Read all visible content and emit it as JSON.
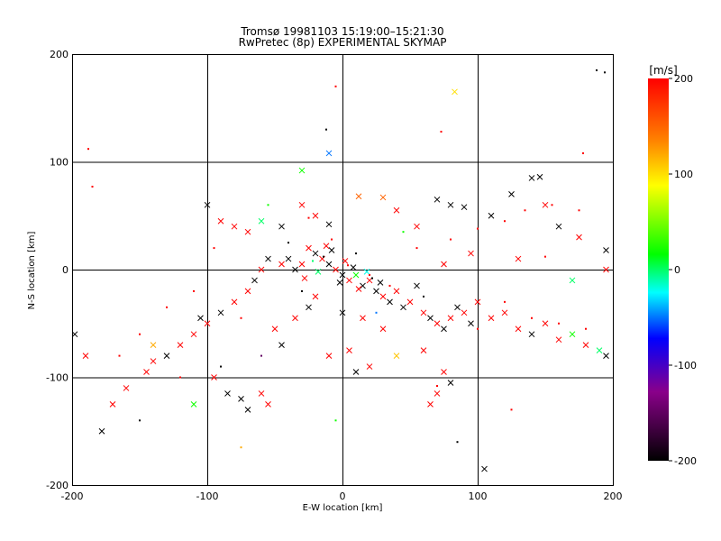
{
  "chart_data": {
    "type": "scatter",
    "title": "Tromsø 19981103 15:19:00–15:21:30",
    "subtitle": "RwPretec (8p) EXPERIMENTAL SKYMAP",
    "xlabel": "E-W location [km]",
    "ylabel": "N-S location [km]",
    "xlim": [
      -200,
      200
    ],
    "ylim": [
      -200,
      200
    ],
    "x_ticks": [
      -200,
      -100,
      0,
      100,
      200
    ],
    "y_ticks": [
      -200,
      -100,
      0,
      100,
      200
    ],
    "x_tick_labels": [
      "-200",
      "-100",
      "0",
      "100",
      "200"
    ],
    "y_tick_labels": [
      "-200",
      "-100",
      "0",
      "100",
      "200"
    ],
    "grid": true,
    "marker_types": [
      "x",
      "dot"
    ],
    "colorbar": {
      "label": "[m/s]",
      "range": [
        -200,
        200
      ],
      "ticks": [
        200,
        100,
        0,
        -100,
        -200
      ],
      "tick_labels": [
        "200",
        "100",
        "0",
        "-100",
        "-200"
      ],
      "colormap": [
        "#000000",
        "#9a0090",
        "#0000ff",
        "#00ffff",
        "#00ff00",
        "#ffff00",
        "#ff8000",
        "#ff0000"
      ]
    },
    "points": [
      {
        "x": -15,
        "y": 10,
        "v": 200,
        "m": "x"
      },
      {
        "x": -10,
        "y": 5,
        "v": -200,
        "m": "x"
      },
      {
        "x": -5,
        "y": 0,
        "v": 200,
        "m": "x"
      },
      {
        "x": 0,
        "y": -5,
        "v": -200,
        "m": "x"
      },
      {
        "x": 5,
        "y": -10,
        "v": 200,
        "m": "x"
      },
      {
        "x": 10,
        "y": -5,
        "v": 20,
        "m": "x"
      },
      {
        "x": -20,
        "y": 15,
        "v": -200,
        "m": "x"
      },
      {
        "x": -25,
        "y": 20,
        "v": 200,
        "m": "x"
      },
      {
        "x": 15,
        "y": -15,
        "v": -200,
        "m": "x"
      },
      {
        "x": 20,
        "y": -10,
        "v": 200,
        "m": "x"
      },
      {
        "x": 25,
        "y": -20,
        "v": -200,
        "m": "x"
      },
      {
        "x": -30,
        "y": 5,
        "v": 200,
        "m": "x"
      },
      {
        "x": -35,
        "y": 0,
        "v": -200,
        "m": "x"
      },
      {
        "x": 30,
        "y": -25,
        "v": 200,
        "m": "x"
      },
      {
        "x": 35,
        "y": -30,
        "v": -200,
        "m": "x"
      },
      {
        "x": 40,
        "y": -20,
        "v": 200,
        "m": "x"
      },
      {
        "x": -40,
        "y": 10,
        "v": -200,
        "m": "x"
      },
      {
        "x": -45,
        "y": 5,
        "v": 200,
        "m": "x"
      },
      {
        "x": 45,
        "y": -35,
        "v": -200,
        "m": "x"
      },
      {
        "x": 50,
        "y": -30,
        "v": 200,
        "m": "x"
      },
      {
        "x": -12,
        "y": 22,
        "v": 200,
        "m": "x"
      },
      {
        "x": -8,
        "y": 18,
        "v": -200,
        "m": "x"
      },
      {
        "x": 2,
        "y": 8,
        "v": 200,
        "m": "x"
      },
      {
        "x": 8,
        "y": 2,
        "v": -200,
        "m": "x"
      },
      {
        "x": -2,
        "y": -12,
        "v": -200,
        "m": "x"
      },
      {
        "x": 12,
        "y": -18,
        "v": 200,
        "m": "x"
      },
      {
        "x": -18,
        "y": -2,
        "v": 0,
        "m": "x"
      },
      {
        "x": 18,
        "y": -2,
        "v": -20,
        "m": "x"
      },
      {
        "x": -28,
        "y": -8,
        "v": 200,
        "m": "x"
      },
      {
        "x": 28,
        "y": -12,
        "v": -200,
        "m": "x"
      },
      {
        "x": -55,
        "y": 10,
        "v": -200,
        "m": "x"
      },
      {
        "x": -60,
        "y": 0,
        "v": 200,
        "m": "x"
      },
      {
        "x": -65,
        "y": -10,
        "v": -200,
        "m": "x"
      },
      {
        "x": -70,
        "y": -20,
        "v": 200,
        "m": "x"
      },
      {
        "x": 55,
        "y": -15,
        "v": -200,
        "m": "x"
      },
      {
        "x": 60,
        "y": -40,
        "v": 200,
        "m": "x"
      },
      {
        "x": 65,
        "y": -45,
        "v": -200,
        "m": "x"
      },
      {
        "x": 70,
        "y": -50,
        "v": 200,
        "m": "x"
      },
      {
        "x": 75,
        "y": -55,
        "v": -200,
        "m": "x"
      },
      {
        "x": 80,
        "y": -45,
        "v": 200,
        "m": "x"
      },
      {
        "x": 85,
        "y": -35,
        "v": -200,
        "m": "x"
      },
      {
        "x": 90,
        "y": -40,
        "v": 200,
        "m": "x"
      },
      {
        "x": 95,
        "y": -50,
        "v": -200,
        "m": "x"
      },
      {
        "x": 100,
        "y": -30,
        "v": 200,
        "m": "x"
      },
      {
        "x": 110,
        "y": -45,
        "v": 200,
        "m": "x"
      },
      {
        "x": 120,
        "y": -40,
        "v": 200,
        "m": "x"
      },
      {
        "x": 130,
        "y": -55,
        "v": 200,
        "m": "x"
      },
      {
        "x": 140,
        "y": -60,
        "v": -200,
        "m": "x"
      },
      {
        "x": 150,
        "y": -50,
        "v": 200,
        "m": "x"
      },
      {
        "x": 160,
        "y": -65,
        "v": 200,
        "m": "x"
      },
      {
        "x": 170,
        "y": -60,
        "v": 20,
        "m": "x"
      },
      {
        "x": 180,
        "y": -70,
        "v": 200,
        "m": "x"
      },
      {
        "x": 190,
        "y": -75,
        "v": 0,
        "m": "x"
      },
      {
        "x": 195,
        "y": -80,
        "v": -200,
        "m": "x"
      },
      {
        "x": -80,
        "y": -30,
        "v": 200,
        "m": "x"
      },
      {
        "x": -90,
        "y": -40,
        "v": -200,
        "m": "x"
      },
      {
        "x": -100,
        "y": -50,
        "v": 200,
        "m": "x"
      },
      {
        "x": -105,
        "y": -45,
        "v": -200,
        "m": "x"
      },
      {
        "x": -110,
        "y": -60,
        "v": 200,
        "m": "x"
      },
      {
        "x": -120,
        "y": -70,
        "v": 200,
        "m": "x"
      },
      {
        "x": -130,
        "y": -80,
        "v": -200,
        "m": "x"
      },
      {
        "x": -140,
        "y": -85,
        "v": 200,
        "m": "x"
      },
      {
        "x": -145,
        "y": -95,
        "v": 200,
        "m": "x"
      },
      {
        "x": -160,
        "y": -110,
        "v": 200,
        "m": "x"
      },
      {
        "x": -170,
        "y": -125,
        "v": 200,
        "m": "x"
      },
      {
        "x": -178,
        "y": -150,
        "v": -200,
        "m": "x"
      },
      {
        "x": -190,
        "y": -80,
        "v": 200,
        "m": "x"
      },
      {
        "x": -198,
        "y": -60,
        "v": -200,
        "m": "x"
      },
      {
        "x": -95,
        "y": -100,
        "v": 200,
        "m": "x"
      },
      {
        "x": -85,
        "y": -115,
        "v": -200,
        "m": "x"
      },
      {
        "x": -75,
        "y": -120,
        "v": -200,
        "m": "x"
      },
      {
        "x": -70,
        "y": -130,
        "v": -200,
        "m": "x"
      },
      {
        "x": -60,
        "y": -115,
        "v": 200,
        "m": "x"
      },
      {
        "x": -55,
        "y": -125,
        "v": 200,
        "m": "x"
      },
      {
        "x": -110,
        "y": -125,
        "v": 20,
        "m": "x"
      },
      {
        "x": -140,
        "y": -70,
        "v": 120,
        "m": "x"
      },
      {
        "x": -100,
        "y": 60,
        "v": -200,
        "m": "x"
      },
      {
        "x": -90,
        "y": 45,
        "v": 200,
        "m": "x"
      },
      {
        "x": -80,
        "y": 40,
        "v": 200,
        "m": "x"
      },
      {
        "x": -70,
        "y": 35,
        "v": 200,
        "m": "x"
      },
      {
        "x": -60,
        "y": 45,
        "v": 0,
        "m": "x"
      },
      {
        "x": -45,
        "y": 40,
        "v": -200,
        "m": "x"
      },
      {
        "x": -30,
        "y": 60,
        "v": 200,
        "m": "x"
      },
      {
        "x": -20,
        "y": 50,
        "v": 200,
        "m": "x"
      },
      {
        "x": -10,
        "y": 42,
        "v": -200,
        "m": "x"
      },
      {
        "x": 12,
        "y": 68,
        "v": 150,
        "m": "x"
      },
      {
        "x": 30,
        "y": 67,
        "v": 150,
        "m": "x"
      },
      {
        "x": 40,
        "y": 55,
        "v": 200,
        "m": "x"
      },
      {
        "x": 55,
        "y": 40,
        "v": 200,
        "m": "x"
      },
      {
        "x": 70,
        "y": 65,
        "v": -200,
        "m": "x"
      },
      {
        "x": 80,
        "y": 60,
        "v": -200,
        "m": "x"
      },
      {
        "x": 90,
        "y": 58,
        "v": -200,
        "m": "x"
      },
      {
        "x": 110,
        "y": 50,
        "v": -200,
        "m": "x"
      },
      {
        "x": 125,
        "y": 70,
        "v": -200,
        "m": "x"
      },
      {
        "x": 140,
        "y": 85,
        "v": -200,
        "m": "x"
      },
      {
        "x": 146,
        "y": 86,
        "v": -200,
        "m": "x"
      },
      {
        "x": 150,
        "y": 60,
        "v": 200,
        "m": "x"
      },
      {
        "x": 160,
        "y": 40,
        "v": -200,
        "m": "x"
      },
      {
        "x": 175,
        "y": 30,
        "v": 200,
        "m": "x"
      },
      {
        "x": 195,
        "y": 18,
        "v": -200,
        "m": "x"
      },
      {
        "x": 195,
        "y": 0,
        "v": 200,
        "m": "x"
      },
      {
        "x": 170,
        "y": -10,
        "v": 0,
        "m": "x"
      },
      {
        "x": 130,
        "y": 10,
        "v": 200,
        "m": "x"
      },
      {
        "x": 95,
        "y": 15,
        "v": 200,
        "m": "x"
      },
      {
        "x": 75,
        "y": 5,
        "v": 200,
        "m": "x"
      },
      {
        "x": 83,
        "y": 165,
        "v": 100,
        "m": "x"
      },
      {
        "x": -30,
        "y": 92,
        "v": 20,
        "m": "x"
      },
      {
        "x": -10,
        "y": 108,
        "v": -50,
        "m": "x"
      },
      {
        "x": 60,
        "y": -75,
        "v": 200,
        "m": "x"
      },
      {
        "x": 40,
        "y": -80,
        "v": 110,
        "m": "x"
      },
      {
        "x": 20,
        "y": -90,
        "v": 200,
        "m": "x"
      },
      {
        "x": 10,
        "y": -95,
        "v": -200,
        "m": "x"
      },
      {
        "x": 5,
        "y": -75,
        "v": 200,
        "m": "x"
      },
      {
        "x": -10,
        "y": -80,
        "v": 200,
        "m": "x"
      },
      {
        "x": 30,
        "y": -55,
        "v": 200,
        "m": "x"
      },
      {
        "x": 75,
        "y": -95,
        "v": 200,
        "m": "x"
      },
      {
        "x": 80,
        "y": -105,
        "v": -200,
        "m": "x"
      },
      {
        "x": 70,
        "y": -115,
        "v": 200,
        "m": "x"
      },
      {
        "x": 65,
        "y": -125,
        "v": 200,
        "m": "x"
      },
      {
        "x": 105,
        "y": -185,
        "v": -200,
        "m": "x"
      },
      {
        "x": -45,
        "y": -70,
        "v": -200,
        "m": "x"
      },
      {
        "x": -50,
        "y": -55,
        "v": 200,
        "m": "x"
      },
      {
        "x": -35,
        "y": -45,
        "v": 200,
        "m": "x"
      },
      {
        "x": -25,
        "y": -35,
        "v": -200,
        "m": "x"
      },
      {
        "x": -20,
        "y": -25,
        "v": 200,
        "m": "x"
      },
      {
        "x": 0,
        "y": -40,
        "v": -200,
        "m": "x"
      },
      {
        "x": 15,
        "y": -45,
        "v": 200,
        "m": "x"
      },
      {
        "x": -8,
        "y": 28,
        "v": 200,
        "m": "dot"
      },
      {
        "x": -14,
        "y": 12,
        "v": -200,
        "m": "dot"
      },
      {
        "x": 4,
        "y": 4,
        "v": 200,
        "m": "dot"
      },
      {
        "x": 22,
        "y": -8,
        "v": -200,
        "m": "dot"
      },
      {
        "x": -22,
        "y": 8,
        "v": 0,
        "m": "dot"
      },
      {
        "x": 35,
        "y": -15,
        "v": 200,
        "m": "dot"
      },
      {
        "x": -40,
        "y": 25,
        "v": -200,
        "m": "dot"
      },
      {
        "x": 60,
        "y": -25,
        "v": -200,
        "m": "dot"
      },
      {
        "x": -75,
        "y": -45,
        "v": 200,
        "m": "dot"
      },
      {
        "x": 100,
        "y": -55,
        "v": 200,
        "m": "dot"
      },
      {
        "x": 120,
        "y": -30,
        "v": 200,
        "m": "dot"
      },
      {
        "x": 140,
        "y": -45,
        "v": 200,
        "m": "dot"
      },
      {
        "x": 160,
        "y": -50,
        "v": 200,
        "m": "dot"
      },
      {
        "x": 180,
        "y": -55,
        "v": 200,
        "m": "dot"
      },
      {
        "x": -188,
        "y": 112,
        "v": 200,
        "m": "dot"
      },
      {
        "x": -185,
        "y": 77,
        "v": 200,
        "m": "dot"
      },
      {
        "x": -5,
        "y": 170,
        "v": 200,
        "m": "dot"
      },
      {
        "x": 73,
        "y": 128,
        "v": 200,
        "m": "dot"
      },
      {
        "x": 188,
        "y": 185,
        "v": -200,
        "m": "dot"
      },
      {
        "x": 194,
        "y": 183,
        "v": -200,
        "m": "dot"
      },
      {
        "x": 150,
        "y": 200,
        "v": -200,
        "m": "dot"
      },
      {
        "x": -12,
        "y": 130,
        "v": -200,
        "m": "dot"
      },
      {
        "x": 20,
        "y": -5,
        "v": 200,
        "m": "dot"
      },
      {
        "x": -90,
        "y": -90,
        "v": -200,
        "m": "dot"
      },
      {
        "x": -120,
        "y": -100,
        "v": 200,
        "m": "dot"
      },
      {
        "x": -150,
        "y": -140,
        "v": -200,
        "m": "dot"
      },
      {
        "x": 85,
        "y": -160,
        "v": -200,
        "m": "dot"
      },
      {
        "x": 125,
        "y": -130,
        "v": 200,
        "m": "dot"
      },
      {
        "x": -75,
        "y": -165,
        "v": 120,
        "m": "dot"
      },
      {
        "x": -5,
        "y": -140,
        "v": 20,
        "m": "dot"
      },
      {
        "x": 70,
        "y": -108,
        "v": 200,
        "m": "dot"
      },
      {
        "x": -55,
        "y": 60,
        "v": 20,
        "m": "dot"
      },
      {
        "x": -25,
        "y": 48,
        "v": 200,
        "m": "dot"
      },
      {
        "x": 45,
        "y": 35,
        "v": 20,
        "m": "dot"
      },
      {
        "x": 55,
        "y": 20,
        "v": 200,
        "m": "dot"
      },
      {
        "x": 80,
        "y": 28,
        "v": 200,
        "m": "dot"
      },
      {
        "x": 100,
        "y": 38,
        "v": 200,
        "m": "dot"
      },
      {
        "x": 120,
        "y": 45,
        "v": 200,
        "m": "dot"
      },
      {
        "x": 135,
        "y": 55,
        "v": 200,
        "m": "dot"
      },
      {
        "x": 155,
        "y": 60,
        "v": 200,
        "m": "dot"
      },
      {
        "x": 175,
        "y": 55,
        "v": 200,
        "m": "dot"
      },
      {
        "x": 178,
        "y": 108,
        "v": 200,
        "m": "dot"
      },
      {
        "x": 150,
        "y": 12,
        "v": 200,
        "m": "dot"
      },
      {
        "x": -95,
        "y": 20,
        "v": 200,
        "m": "dot"
      },
      {
        "x": -110,
        "y": -20,
        "v": 200,
        "m": "dot"
      },
      {
        "x": -130,
        "y": -35,
        "v": 200,
        "m": "dot"
      },
      {
        "x": -150,
        "y": -60,
        "v": 200,
        "m": "dot"
      },
      {
        "x": -165,
        "y": -80,
        "v": 200,
        "m": "dot"
      },
      {
        "x": -60,
        "y": -80,
        "v": -150,
        "m": "dot"
      },
      {
        "x": 25,
        "y": -40,
        "v": -50,
        "m": "dot"
      },
      {
        "x": -30,
        "y": -20,
        "v": -200,
        "m": "dot"
      },
      {
        "x": 10,
        "y": 15,
        "v": -200,
        "m": "dot"
      }
    ]
  }
}
